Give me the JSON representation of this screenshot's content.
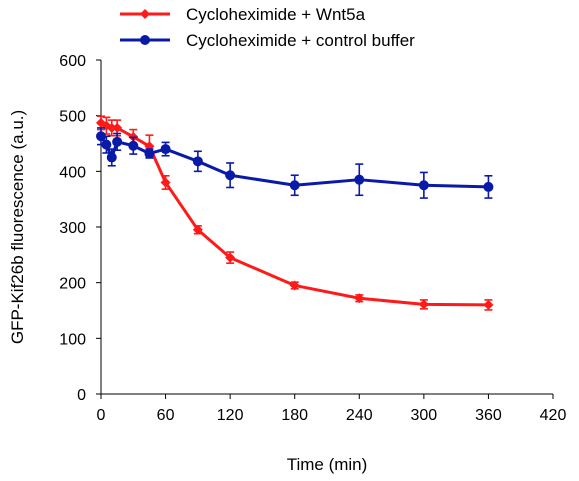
{
  "chart_data": {
    "type": "line",
    "xlabel": "Time (min)",
    "ylabel": "GFP-Kif26b fluorescence (a.u.)",
    "xlim": [
      0,
      420
    ],
    "ylim": [
      0,
      600
    ],
    "xticks": [
      0,
      60,
      120,
      180,
      240,
      300,
      360,
      420
    ],
    "yticks": [
      0,
      100,
      200,
      300,
      400,
      500,
      600
    ],
    "grid": false,
    "legend_position": "top-center",
    "series": [
      {
        "name": "Cycloheximide + Wnt5a",
        "color": "#ff1a1a",
        "marker": "diamond",
        "x": [
          0,
          5,
          10,
          15,
          30,
          45,
          60,
          90,
          120,
          180,
          240,
          300,
          360
        ],
        "y": [
          487,
          482,
          478,
          478,
          462,
          445,
          380,
          295,
          245,
          195,
          172,
          161,
          160
        ],
        "err": [
          12,
          15,
          14,
          14,
          13,
          20,
          12,
          7,
          10,
          6,
          6,
          8,
          9
        ]
      },
      {
        "name": "Cycloheximide + control buffer",
        "color": "#0a1aa8",
        "marker": "circle",
        "x": [
          0,
          5,
          10,
          15,
          30,
          45,
          60,
          90,
          120,
          180,
          240,
          300,
          360
        ],
        "y": [
          463,
          448,
          425,
          453,
          446,
          432,
          440,
          418,
          393,
          375,
          385,
          375,
          372
        ],
        "err": [
          15,
          15,
          15,
          15,
          15,
          8,
          12,
          18,
          22,
          18,
          28,
          23,
          20
        ]
      }
    ]
  }
}
